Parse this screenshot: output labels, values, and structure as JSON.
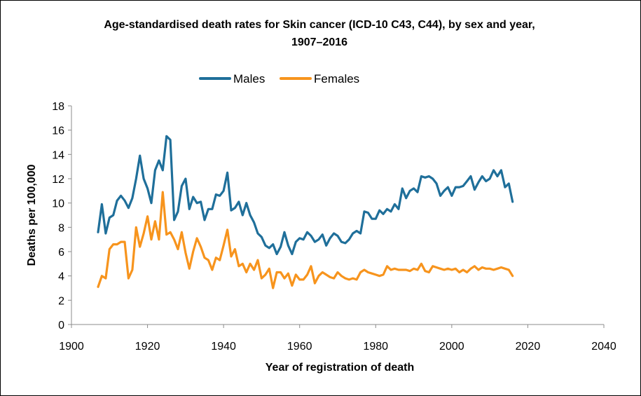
{
  "chart_data": {
    "type": "line",
    "title_line1": "Age-standardised death rates for Skin cancer (ICD-10 C43, C44), by sex and year,",
    "title_line2": "1907–2016",
    "xlabel": "Year of registration of death",
    "ylabel": "Deaths per 100,000",
    "xlim": [
      1900,
      2040
    ],
    "ylim": [
      0,
      18
    ],
    "x_ticks": [
      1900,
      1920,
      1940,
      1960,
      1980,
      2000,
      2020,
      2040
    ],
    "y_ticks": [
      0,
      2,
      4,
      6,
      8,
      10,
      12,
      14,
      16,
      18
    ],
    "grid": false,
    "legend_position": "top",
    "series": [
      {
        "name": "Males",
        "color": "#1f6f9a",
        "x": [
          1907,
          1908,
          1909,
          1910,
          1911,
          1912,
          1913,
          1914,
          1915,
          1916,
          1917,
          1918,
          1919,
          1920,
          1921,
          1922,
          1923,
          1924,
          1925,
          1926,
          1927,
          1928,
          1929,
          1930,
          1931,
          1932,
          1933,
          1934,
          1935,
          1936,
          1937,
          1938,
          1939,
          1940,
          1941,
          1942,
          1943,
          1944,
          1945,
          1946,
          1947,
          1948,
          1949,
          1950,
          1951,
          1952,
          1953,
          1954,
          1955,
          1956,
          1957,
          1958,
          1959,
          1960,
          1961,
          1962,
          1963,
          1964,
          1965,
          1966,
          1967,
          1968,
          1969,
          1970,
          1971,
          1972,
          1973,
          1974,
          1975,
          1976,
          1977,
          1978,
          1979,
          1980,
          1981,
          1982,
          1983,
          1984,
          1985,
          1986,
          1987,
          1988,
          1989,
          1990,
          1991,
          1992,
          1993,
          1994,
          1995,
          1996,
          1997,
          1998,
          1999,
          2000,
          2001,
          2002,
          2003,
          2004,
          2005,
          2006,
          2007,
          2008,
          2009,
          2010,
          2011,
          2012,
          2013,
          2014,
          2015,
          2016
        ],
        "y": [
          7.6,
          9.9,
          7.5,
          8.8,
          9.0,
          10.2,
          10.6,
          10.2,
          9.6,
          10.4,
          12.0,
          13.9,
          12.0,
          11.2,
          10.0,
          12.7,
          13.5,
          12.7,
          15.5,
          15.2,
          8.6,
          9.3,
          11.4,
          12.0,
          9.5,
          10.5,
          10.0,
          10.1,
          8.6,
          9.5,
          9.5,
          10.7,
          10.6,
          11.0,
          12.5,
          9.4,
          9.6,
          10.1,
          9.0,
          10.0,
          9.0,
          8.4,
          7.5,
          7.2,
          6.5,
          6.3,
          6.6,
          5.8,
          6.4,
          7.6,
          6.5,
          5.8,
          6.8,
          7.1,
          7.0,
          7.6,
          7.3,
          6.8,
          7.0,
          7.4,
          6.5,
          7.1,
          7.5,
          7.3,
          6.8,
          6.7,
          7.0,
          7.5,
          7.7,
          7.5,
          9.3,
          9.2,
          8.7,
          8.7,
          9.4,
          9.1,
          9.5,
          9.3,
          9.9,
          9.5,
          11.2,
          10.4,
          11.0,
          11.2,
          10.9,
          12.2,
          12.1,
          12.2,
          12.0,
          11.6,
          10.6,
          11.0,
          11.3,
          10.6,
          11.3,
          11.3,
          11.4,
          11.8,
          12.2,
          11.1,
          11.7,
          12.2,
          11.8,
          12.0,
          12.7,
          12.2,
          12.7,
          11.3,
          11.6,
          10.1
        ]
      },
      {
        "name": "Females",
        "color": "#f7941d",
        "x": [
          1907,
          1908,
          1909,
          1910,
          1911,
          1912,
          1913,
          1914,
          1915,
          1916,
          1917,
          1918,
          1919,
          1920,
          1921,
          1922,
          1923,
          1924,
          1925,
          1926,
          1927,
          1928,
          1929,
          1930,
          1931,
          1932,
          1933,
          1934,
          1935,
          1936,
          1937,
          1938,
          1939,
          1940,
          1941,
          1942,
          1943,
          1944,
          1945,
          1946,
          1947,
          1948,
          1949,
          1950,
          1951,
          1952,
          1953,
          1954,
          1955,
          1956,
          1957,
          1958,
          1959,
          1960,
          1961,
          1962,
          1963,
          1964,
          1965,
          1966,
          1967,
          1968,
          1969,
          1970,
          1971,
          1972,
          1973,
          1974,
          1975,
          1976,
          1977,
          1978,
          1979,
          1980,
          1981,
          1982,
          1983,
          1984,
          1985,
          1986,
          1987,
          1988,
          1989,
          1990,
          1991,
          1992,
          1993,
          1994,
          1995,
          1996,
          1997,
          1998,
          1999,
          2000,
          2001,
          2002,
          2003,
          2004,
          2005,
          2006,
          2007,
          2008,
          2009,
          2010,
          2011,
          2012,
          2013,
          2014,
          2015,
          2016
        ],
        "y": [
          3.1,
          4.0,
          3.8,
          6.2,
          6.6,
          6.6,
          6.8,
          6.8,
          3.8,
          4.5,
          8.0,
          6.4,
          7.5,
          8.9,
          7.0,
          8.5,
          7.0,
          10.9,
          7.4,
          7.6,
          7.0,
          6.2,
          7.6,
          5.9,
          4.6,
          6.0,
          7.1,
          6.4,
          5.5,
          5.3,
          4.5,
          5.5,
          5.3,
          6.5,
          7.8,
          5.6,
          6.2,
          4.8,
          5.0,
          4.3,
          5.0,
          4.5,
          5.3,
          3.8,
          4.1,
          4.6,
          3.0,
          4.3,
          4.3,
          3.8,
          4.2,
          3.2,
          4.1,
          3.7,
          3.7,
          4.1,
          4.8,
          3.4,
          4.0,
          4.3,
          4.1,
          3.9,
          3.8,
          4.3,
          4.0,
          3.8,
          3.7,
          3.8,
          3.7,
          4.3,
          4.5,
          4.3,
          4.2,
          4.1,
          4.0,
          4.1,
          4.8,
          4.5,
          4.6,
          4.5,
          4.5,
          4.5,
          4.4,
          4.6,
          4.5,
          5.0,
          4.4,
          4.3,
          4.8,
          4.7,
          4.6,
          4.5,
          4.6,
          4.5,
          4.6,
          4.3,
          4.5,
          4.3,
          4.6,
          4.8,
          4.5,
          4.7,
          4.6,
          4.6,
          4.5,
          4.6,
          4.7,
          4.6,
          4.5,
          4.0
        ]
      }
    ]
  }
}
